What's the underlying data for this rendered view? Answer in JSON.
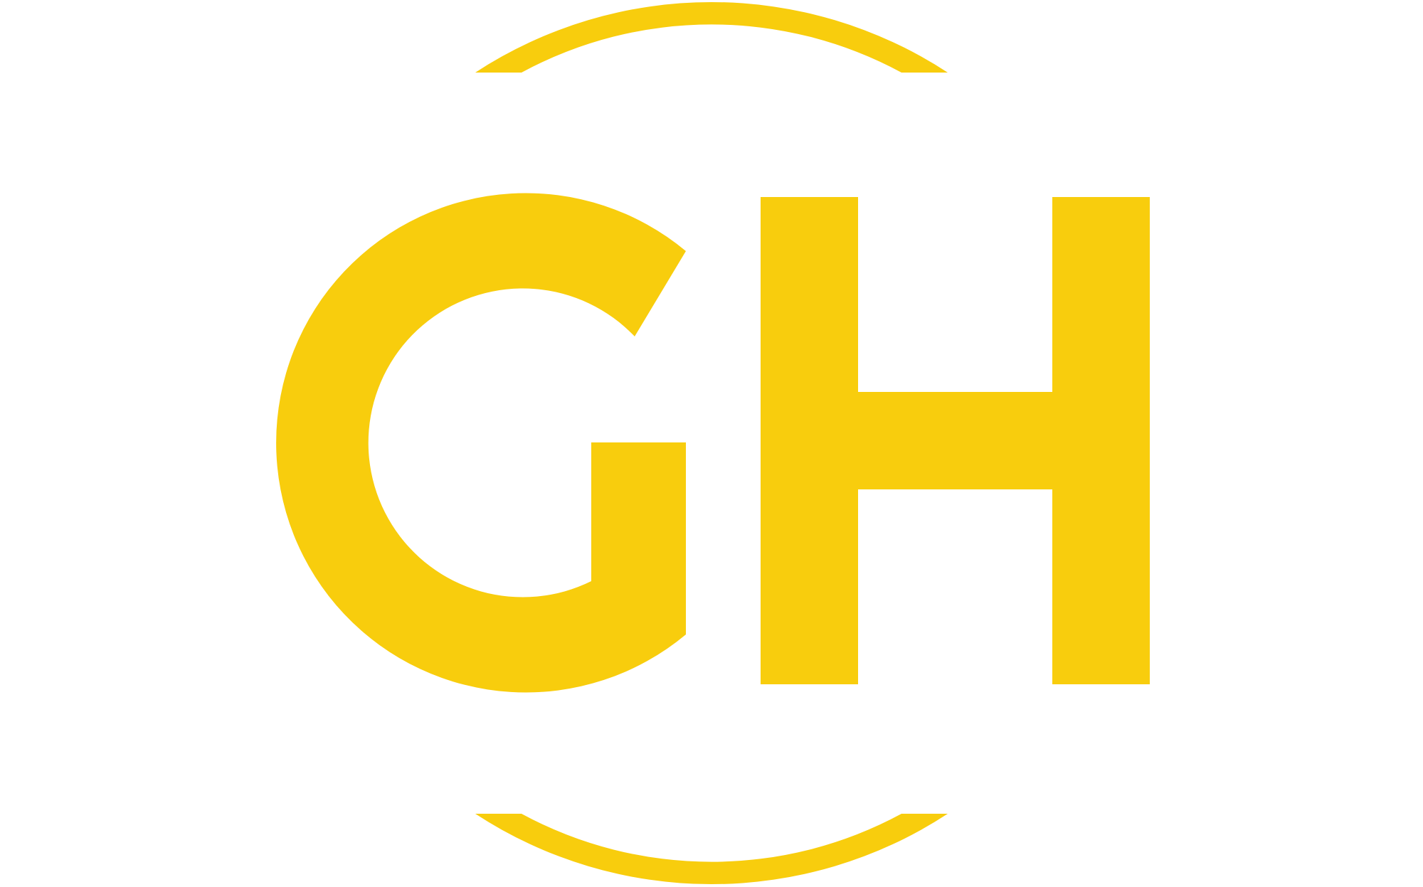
{
  "logo": {
    "monogram": "GH",
    "colors": {
      "brand": "#F8CD0D",
      "background": "#FFFFFF"
    }
  }
}
